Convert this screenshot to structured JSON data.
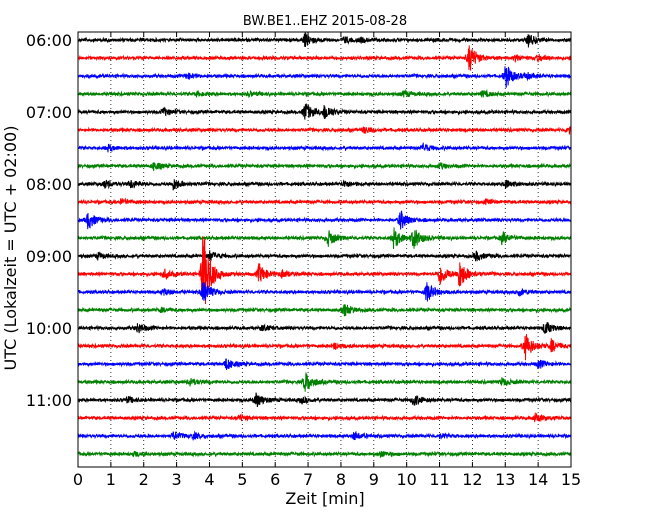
{
  "chart_data": {
    "type": "line",
    "title": "BW.BE1..EHZ 2015-08-28",
    "xlabel": "Zeit  [min]",
    "ylabel": "UTC (Lokalzeit = UTC + 02:00)",
    "xlim": [
      0,
      15
    ],
    "x_ticks": [
      "0",
      "1",
      "2",
      "3",
      "4",
      "5",
      "6",
      "7",
      "8",
      "9",
      "10",
      "11",
      "12",
      "13",
      "14",
      "15"
    ],
    "y_ticks": [
      "06:00",
      "07:00",
      "08:00",
      "09:00",
      "10:00",
      "11:00"
    ],
    "grid": true,
    "trace_colors": [
      "#000000",
      "#ff0000",
      "#0000ff",
      "#008000"
    ],
    "traces": [
      {
        "start": "06:00",
        "events": [
          [
            6.9,
            7
          ],
          [
            8.1,
            3
          ],
          [
            8.6,
            2
          ],
          [
            13.7,
            6
          ]
        ]
      },
      {
        "start": "06:15",
        "events": [
          [
            11.9,
            14
          ],
          [
            13.3,
            3
          ],
          [
            14.0,
            3
          ]
        ]
      },
      {
        "start": "06:30",
        "events": [
          [
            3.3,
            3
          ],
          [
            13.0,
            12
          ],
          [
            13.6,
            3
          ]
        ]
      },
      {
        "start": "06:45",
        "events": [
          [
            3.6,
            2
          ],
          [
            5.2,
            2
          ],
          [
            9.9,
            3
          ],
          [
            12.3,
            3
          ]
        ]
      },
      {
        "start": "07:00",
        "events": [
          [
            2.6,
            4
          ],
          [
            6.9,
            10
          ],
          [
            7.5,
            8
          ]
        ]
      },
      {
        "start": "07:15",
        "events": [
          [
            8.7,
            3
          ],
          [
            14.9,
            5
          ]
        ]
      },
      {
        "start": "07:30",
        "events": [
          [
            0.9,
            3
          ],
          [
            10.5,
            4
          ]
        ]
      },
      {
        "start": "07:45",
        "events": [
          [
            2.3,
            4
          ],
          [
            11.0,
            3
          ]
        ]
      },
      {
        "start": "08:00",
        "events": [
          [
            0.8,
            4
          ],
          [
            1.6,
            4
          ],
          [
            2.9,
            6
          ],
          [
            8.1,
            3
          ],
          [
            13.0,
            4
          ]
        ]
      },
      {
        "start": "08:15",
        "events": [
          [
            1.3,
            3
          ],
          [
            12.4,
            2
          ]
        ]
      },
      {
        "start": "08:30",
        "events": [
          [
            0.3,
            9
          ],
          [
            9.8,
            10
          ]
        ]
      },
      {
        "start": "08:45",
        "events": [
          [
            7.6,
            8
          ],
          [
            9.6,
            10
          ],
          [
            10.2,
            11
          ],
          [
            12.9,
            6
          ]
        ]
      },
      {
        "start": "09:00",
        "events": [
          [
            0.6,
            3
          ],
          [
            4.0,
            5
          ],
          [
            12.1,
            5
          ]
        ]
      },
      {
        "start": "09:15",
        "events": [
          [
            2.6,
            5
          ],
          [
            3.8,
            45
          ],
          [
            5.5,
            10
          ],
          [
            6.2,
            4
          ],
          [
            11.0,
            12
          ],
          [
            11.6,
            15
          ]
        ]
      },
      {
        "start": "09:30",
        "events": [
          [
            2.6,
            3
          ],
          [
            3.8,
            12
          ],
          [
            10.6,
            10
          ],
          [
            13.4,
            4
          ]
        ]
      },
      {
        "start": "09:45",
        "events": [
          [
            8.1,
            6
          ],
          [
            2.5,
            2
          ]
        ]
      },
      {
        "start": "10:00",
        "events": [
          [
            1.8,
            5
          ],
          [
            5.6,
            3
          ],
          [
            14.2,
            7
          ]
        ]
      },
      {
        "start": "10:15",
        "events": [
          [
            7.8,
            3
          ],
          [
            13.6,
            14
          ],
          [
            14.4,
            6
          ]
        ]
      },
      {
        "start": "10:30",
        "events": [
          [
            4.5,
            6
          ],
          [
            14.0,
            4
          ]
        ]
      },
      {
        "start": "10:45",
        "events": [
          [
            3.4,
            4
          ],
          [
            6.9,
            11
          ],
          [
            12.9,
            4
          ]
        ]
      },
      {
        "start": "11:00",
        "events": [
          [
            1.5,
            3
          ],
          [
            5.4,
            8
          ],
          [
            6.8,
            3
          ],
          [
            10.2,
            6
          ]
        ]
      },
      {
        "start": "11:15",
        "events": [
          [
            4.9,
            3
          ],
          [
            13.9,
            5
          ]
        ]
      },
      {
        "start": "11:30",
        "events": [
          [
            2.9,
            4
          ],
          [
            3.5,
            3
          ],
          [
            8.4,
            4
          ],
          [
            11.0,
            2
          ]
        ]
      },
      {
        "start": "11:45",
        "events": [
          [
            1.7,
            2
          ],
          [
            9.2,
            3
          ]
        ]
      }
    ]
  }
}
